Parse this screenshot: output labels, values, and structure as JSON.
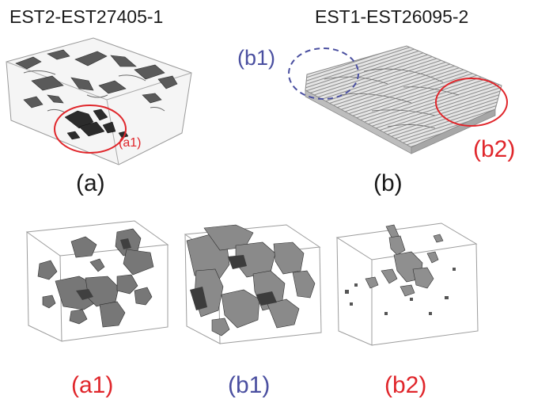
{
  "panel_a": {
    "title": "EST2-EST27405-1",
    "callout": "(a1)",
    "caption": "(a)"
  },
  "panel_b": {
    "title": "EST1-EST26095-2",
    "callout_left": "(b1)",
    "callout_right": "(b2)",
    "caption": "(b)"
  },
  "subvolumes": [
    {
      "label": "(a1)"
    },
    {
      "label": "(b1)"
    },
    {
      "label": "(b2)"
    }
  ],
  "colors": {
    "red": "#e0262b",
    "blue": "#4a4fa0",
    "text": "#1a1a1a",
    "dark": "#3b3b3b",
    "gray": "#8c8c8c",
    "light": "#cfcfcf"
  }
}
